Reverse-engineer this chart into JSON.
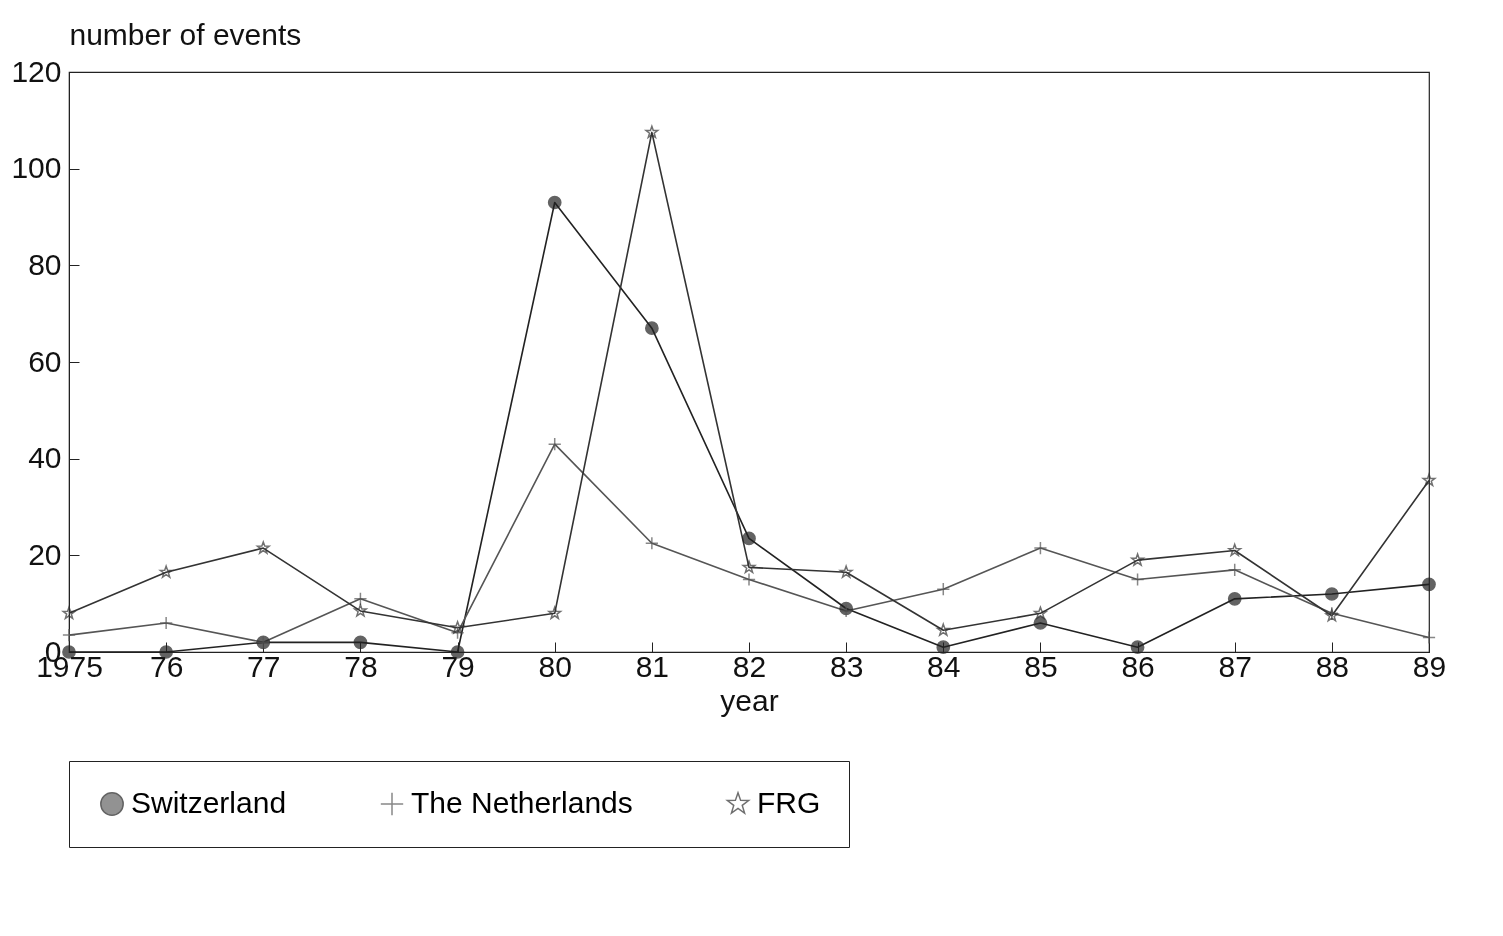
{
  "chart_data": {
    "type": "line",
    "xlabel": "year",
    "ylabel": "number of events",
    "x": [
      1975,
      1976,
      1977,
      1978,
      1979,
      1980,
      1981,
      1982,
      1983,
      1984,
      1985,
      1986,
      1987,
      1988,
      1989
    ],
    "xlim": [
      1975,
      1989
    ],
    "xticks": [
      1975,
      {
        "value": 1976,
        "label": "76"
      },
      {
        "value": 1977,
        "label": "77"
      },
      {
        "value": 1978,
        "label": "78"
      },
      {
        "value": 1979,
        "label": "79"
      },
      {
        "value": 1980,
        "label": "80"
      },
      {
        "value": 1981,
        "label": "81"
      },
      {
        "value": 1982,
        "label": "82"
      },
      {
        "value": 1983,
        "label": "83"
      },
      {
        "value": 1984,
        "label": "84"
      },
      {
        "value": 1985,
        "label": "85"
      },
      {
        "value": 1986,
        "label": "86"
      },
      {
        "value": 1987,
        "label": "87"
      },
      {
        "value": 1988,
        "label": "88"
      },
      {
        "value": 1989,
        "label": "89"
      }
    ],
    "ylim": [
      0,
      120
    ],
    "yticks": [
      0,
      20,
      40,
      60,
      80,
      100,
      120
    ],
    "grid": false,
    "legend": "bottom",
    "series": [
      {
        "name": "Switzerland",
        "color": "#222222",
        "marker": "circle",
        "values": [
          0,
          0,
          2,
          2,
          0,
          93,
          67,
          23.5,
          9,
          1,
          6,
          1,
          11,
          12,
          14
        ]
      },
      {
        "name": "The Netherlands",
        "color": "#555555",
        "marker": "cross",
        "values": [
          3.5,
          6,
          2,
          11,
          4,
          43,
          22.5,
          15,
          8.5,
          13,
          21.5,
          15,
          17,
          8,
          3
        ]
      },
      {
        "name": "FRG",
        "color": "#333333",
        "marker": "star",
        "values": [
          8,
          16.5,
          21.5,
          8.5,
          5,
          8,
          107.5,
          17.5,
          16.5,
          4.5,
          8,
          19,
          21,
          7.5,
          35.5
        ]
      }
    ]
  }
}
